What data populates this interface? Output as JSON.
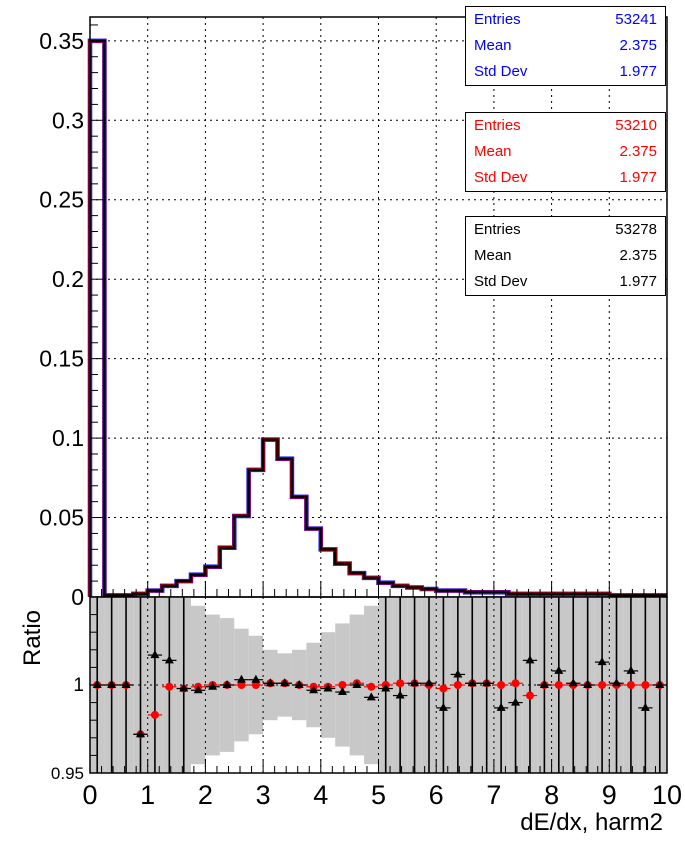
{
  "chart_data": [
    {
      "type": "line",
      "panel": "main",
      "xlim": [
        0,
        10
      ],
      "ylim": [
        0,
        0.365
      ],
      "grid": true,
      "y_ticks": [
        "0",
        "0.05",
        "0.1",
        "0.15",
        "0.2",
        "0.25",
        "0.3",
        "0.35"
      ],
      "bin_edges": [
        0,
        0.25,
        0.5,
        0.75,
        1,
        1.25,
        1.5,
        1.75,
        2,
        2.25,
        2.5,
        2.75,
        3,
        3.25,
        3.5,
        3.75,
        4,
        4.25,
        4.5,
        4.75,
        5,
        5.25,
        5.5,
        5.75,
        6,
        6.25,
        6.5,
        6.75,
        7,
        7.25,
        7.5,
        7.75,
        8,
        8.25,
        8.5,
        8.75,
        9,
        9.25,
        9.5,
        9.75,
        10
      ],
      "series": [
        {
          "color": "#0000ff",
          "values": [
            0.35,
            0.001,
            0.001,
            0.002,
            0.004,
            0.007,
            0.01,
            0.014,
            0.019,
            0.031,
            0.051,
            0.08,
            0.099,
            0.087,
            0.063,
            0.043,
            0.03,
            0.021,
            0.015,
            0.012,
            0.009,
            0.007,
            0.006,
            0.005,
            0.004,
            0.004,
            0.003,
            0.003,
            0.003,
            0.002,
            0.002,
            0.002,
            0.002,
            0.002,
            0.002,
            0.002,
            0.001,
            0.001,
            0.001,
            0.001
          ]
        },
        {
          "color": "#ff0000",
          "values": [
            0.35,
            0.001,
            0.001,
            0.002,
            0.004,
            0.007,
            0.01,
            0.014,
            0.019,
            0.031,
            0.051,
            0.08,
            0.099,
            0.087,
            0.063,
            0.043,
            0.03,
            0.021,
            0.015,
            0.012,
            0.009,
            0.007,
            0.006,
            0.005,
            0.004,
            0.004,
            0.003,
            0.003,
            0.003,
            0.002,
            0.002,
            0.002,
            0.002,
            0.002,
            0.002,
            0.002,
            0.001,
            0.001,
            0.001,
            0.001
          ]
        },
        {
          "color": "#000000",
          "values": [
            0.35,
            0.001,
            0.001,
            0.002,
            0.004,
            0.007,
            0.01,
            0.014,
            0.019,
            0.031,
            0.051,
            0.08,
            0.099,
            0.087,
            0.063,
            0.043,
            0.03,
            0.021,
            0.015,
            0.012,
            0.009,
            0.007,
            0.006,
            0.005,
            0.004,
            0.004,
            0.003,
            0.003,
            0.003,
            0.002,
            0.002,
            0.002,
            0.002,
            0.002,
            0.002,
            0.002,
            0.001,
            0.001,
            0.001,
            0.001
          ]
        }
      ]
    },
    {
      "type": "scatter",
      "panel": "ratio",
      "ylabel": "Ratio",
      "xlabel": "dE/dx, harm2",
      "xlim": [
        0,
        10
      ],
      "ylim": [
        0.95,
        1.05
      ],
      "grid": true,
      "y_ticks": [
        "0.95",
        "1"
      ],
      "x_ticks": [
        "0",
        "1",
        "2",
        "3",
        "4",
        "5",
        "6",
        "7",
        "8",
        "9",
        "10"
      ],
      "bin_centers": [
        0.125,
        0.375,
        0.625,
        0.875,
        1.125,
        1.375,
        1.625,
        1.875,
        2.125,
        2.375,
        2.625,
        2.875,
        3.125,
        3.375,
        3.625,
        3.875,
        4.125,
        4.375,
        4.625,
        4.875,
        5.125,
        5.375,
        5.625,
        5.875,
        6.125,
        6.375,
        6.625,
        6.875,
        7.125,
        7.375,
        7.625,
        7.875,
        8.125,
        8.375,
        8.625,
        8.875,
        9.125,
        9.375,
        9.625,
        9.875
      ],
      "band_halfwidth": [
        0.06,
        0.06,
        0.06,
        0.06,
        0.06,
        0.06,
        0.05,
        0.045,
        0.04,
        0.038,
        0.032,
        0.028,
        0.02,
        0.018,
        0.02,
        0.024,
        0.03,
        0.035,
        0.04,
        0.045,
        0.05,
        0.052,
        0.055,
        0.06,
        0.06,
        0.06,
        0.06,
        0.06,
        0.06,
        0.06,
        0.06,
        0.06,
        0.06,
        0.06,
        0.06,
        0.06,
        0.06,
        0.06,
        0.06,
        0.06
      ],
      "series": [
        {
          "color": "#ff0000",
          "marker": "circle",
          "values": [
            1.0,
            1.0,
            1.0,
            0.972,
            0.983,
            0.999,
            0.998,
            0.999,
            1.0,
            1.0,
            1.0,
            1.0,
            1.001,
            1.001,
            1.0,
            0.999,
            0.999,
            1.0,
            1.001,
            0.999,
            1.0,
            1.001,
            1.001,
            1.0,
            0.998,
            1.0,
            1.001,
            1.001,
            1.0,
            1.001,
            0.994,
            1.0,
            1.0,
            1.0,
            1.0,
            1.0,
            1.0,
            1.0,
            1.0,
            1.0
          ]
        },
        {
          "color": "#000000",
          "marker": "triangle",
          "values": [
            1.0,
            1.0,
            1.0,
            0.972,
            1.017,
            1.014,
            0.998,
            0.997,
            0.999,
            1.0,
            1.003,
            1.003,
            1.001,
            1.001,
            1.0,
            0.997,
            0.998,
            0.996,
            1.0,
            0.993,
            0.998,
            0.994,
            1.001,
            1.001,
            0.987,
            1.006,
            1.001,
            1.001,
            0.987,
            0.99,
            1.014,
            1.0,
            1.008,
            1.001,
            1.0,
            1.013,
            1.001,
            1.008,
            0.987,
            1.0
          ]
        }
      ]
    }
  ],
  "stat_boxes": [
    {
      "color": "#0000ff",
      "rows": [
        {
          "label": "Entries",
          "value": "53241"
        },
        {
          "label": "Mean",
          "value": "2.375"
        },
        {
          "label": "Std Dev",
          "value": "1.977"
        }
      ]
    },
    {
      "color": "#ff0000",
      "rows": [
        {
          "label": "Entries",
          "value": "53210"
        },
        {
          "label": "Mean",
          "value": "2.375"
        },
        {
          "label": "Std Dev",
          "value": "1.977"
        }
      ]
    },
    {
      "color": "#000000",
      "rows": [
        {
          "label": "Entries",
          "value": "53278"
        },
        {
          "label": "Mean",
          "value": "2.375"
        },
        {
          "label": "Std Dev",
          "value": "1.977"
        }
      ]
    }
  ]
}
